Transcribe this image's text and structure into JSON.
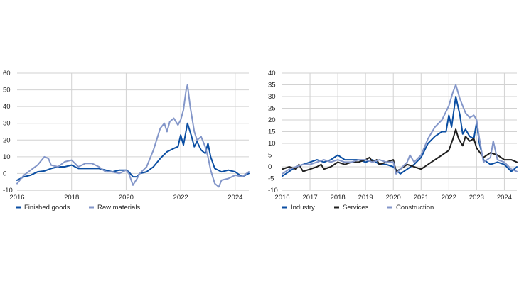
{
  "colors": {
    "dark_blue": "#0b4ea2",
    "black": "#1f1f1f",
    "light_blue": "#8396c9"
  },
  "chart_data": [
    {
      "type": "line",
      "title": "",
      "xlabel": "",
      "ylabel": "",
      "xlim": [
        2016.0,
        2024.5
      ],
      "ylim": [
        -10,
        60
      ],
      "yticks": [
        -10,
        0,
        10,
        20,
        30,
        40,
        50,
        60
      ],
      "xticks": [
        2016,
        2018,
        2020,
        2022,
        2024
      ],
      "grid": true,
      "legend_position": "bottom-left",
      "series": [
        {
          "name": "Finished goods",
          "color": "#0b4ea2",
          "width": 2,
          "points": [
            [
              2016.0,
              -4
            ],
            [
              2016.25,
              -2
            ],
            [
              2016.5,
              -1
            ],
            [
              2016.75,
              1
            ],
            [
              2017.0,
              1.5
            ],
            [
              2017.25,
              3
            ],
            [
              2017.5,
              4
            ],
            [
              2017.75,
              4
            ],
            [
              2018.0,
              5
            ],
            [
              2018.25,
              3
            ],
            [
              2018.5,
              3
            ],
            [
              2018.75,
              3
            ],
            [
              2019.0,
              3
            ],
            [
              2019.25,
              2
            ],
            [
              2019.5,
              1
            ],
            [
              2019.75,
              2
            ],
            [
              2020.0,
              2
            ],
            [
              2020.1,
              1
            ],
            [
              2020.25,
              -2
            ],
            [
              2020.4,
              -2
            ],
            [
              2020.5,
              0
            ],
            [
              2020.75,
              1
            ],
            [
              2021.0,
              4
            ],
            [
              2021.25,
              9
            ],
            [
              2021.5,
              13
            ],
            [
              2021.75,
              15
            ],
            [
              2021.9,
              16
            ],
            [
              2022.0,
              23
            ],
            [
              2022.1,
              17
            ],
            [
              2022.25,
              30
            ],
            [
              2022.4,
              22
            ],
            [
              2022.5,
              16
            ],
            [
              2022.6,
              19
            ],
            [
              2022.75,
              14
            ],
            [
              2022.9,
              12
            ],
            [
              2023.0,
              18
            ],
            [
              2023.1,
              10
            ],
            [
              2023.25,
              3
            ],
            [
              2023.5,
              1
            ],
            [
              2023.75,
              2
            ],
            [
              2024.0,
              1
            ],
            [
              2024.25,
              -2
            ],
            [
              2024.5,
              0
            ]
          ]
        },
        {
          "name": "Raw materials",
          "color": "#8396c9",
          "width": 2,
          "points": [
            [
              2016.0,
              -6
            ],
            [
              2016.25,
              -1
            ],
            [
              2016.5,
              2
            ],
            [
              2016.75,
              5
            ],
            [
              2017.0,
              10
            ],
            [
              2017.15,
              9
            ],
            [
              2017.25,
              5
            ],
            [
              2017.5,
              4
            ],
            [
              2017.75,
              7
            ],
            [
              2018.0,
              8
            ],
            [
              2018.25,
              4
            ],
            [
              2018.5,
              6
            ],
            [
              2018.75,
              6
            ],
            [
              2019.0,
              4
            ],
            [
              2019.25,
              1
            ],
            [
              2019.5,
              1
            ],
            [
              2019.75,
              0
            ],
            [
              2020.0,
              2
            ],
            [
              2020.1,
              0
            ],
            [
              2020.25,
              -7
            ],
            [
              2020.4,
              -3
            ],
            [
              2020.5,
              0
            ],
            [
              2020.75,
              4
            ],
            [
              2021.0,
              14
            ],
            [
              2021.25,
              27
            ],
            [
              2021.4,
              30
            ],
            [
              2021.5,
              25
            ],
            [
              2021.6,
              31
            ],
            [
              2021.75,
              33
            ],
            [
              2021.9,
              29
            ],
            [
              2022.0,
              32
            ],
            [
              2022.1,
              38
            ],
            [
              2022.2,
              50
            ],
            [
              2022.25,
              53
            ],
            [
              2022.35,
              40
            ],
            [
              2022.5,
              25
            ],
            [
              2022.6,
              20
            ],
            [
              2022.75,
              22
            ],
            [
              2022.9,
              16
            ],
            [
              2023.0,
              10
            ],
            [
              2023.1,
              2
            ],
            [
              2023.25,
              -6
            ],
            [
              2023.4,
              -8
            ],
            [
              2023.5,
              -4
            ],
            [
              2023.75,
              -3
            ],
            [
              2024.0,
              -1
            ],
            [
              2024.25,
              -2
            ],
            [
              2024.5,
              1
            ]
          ]
        }
      ]
    },
    {
      "type": "line",
      "title": "",
      "xlabel": "",
      "ylabel": "",
      "xlim": [
        2016.0,
        2024.45
      ],
      "ylim": [
        -10,
        40
      ],
      "yticks": [
        -10,
        -5,
        0,
        5,
        10,
        15,
        20,
        25,
        30,
        35,
        40
      ],
      "xticks": [
        2016,
        2017,
        2018,
        2019,
        2020,
        2021,
        2022,
        2023,
        2024
      ],
      "grid": true,
      "legend_position": "bottom-left",
      "series": [
        {
          "name": "Industry",
          "color": "#0b4ea2",
          "width": 2,
          "points": [
            [
              2016.0,
              -4
            ],
            [
              2016.25,
              -2
            ],
            [
              2016.5,
              0
            ],
            [
              2016.75,
              1
            ],
            [
              2017.0,
              2
            ],
            [
              2017.25,
              3
            ],
            [
              2017.5,
              2
            ],
            [
              2017.75,
              3
            ],
            [
              2018.0,
              5
            ],
            [
              2018.25,
              3
            ],
            [
              2018.5,
              3
            ],
            [
              2018.75,
              3
            ],
            [
              2019.0,
              2
            ],
            [
              2019.25,
              3
            ],
            [
              2019.5,
              1
            ],
            [
              2019.75,
              1
            ],
            [
              2020.0,
              0
            ],
            [
              2020.25,
              -3
            ],
            [
              2020.5,
              -1
            ],
            [
              2020.75,
              1
            ],
            [
              2021.0,
              4
            ],
            [
              2021.25,
              10
            ],
            [
              2021.5,
              13
            ],
            [
              2021.75,
              15
            ],
            [
              2021.9,
              15
            ],
            [
              2022.0,
              22
            ],
            [
              2022.1,
              17
            ],
            [
              2022.25,
              30
            ],
            [
              2022.4,
              22
            ],
            [
              2022.5,
              14
            ],
            [
              2022.6,
              16
            ],
            [
              2022.75,
              13
            ],
            [
              2022.9,
              12
            ],
            [
              2023.0,
              19
            ],
            [
              2023.1,
              10
            ],
            [
              2023.25,
              3
            ],
            [
              2023.5,
              1
            ],
            [
              2023.75,
              2
            ],
            [
              2024.0,
              1
            ],
            [
              2024.25,
              -2
            ],
            [
              2024.45,
              0
            ]
          ]
        },
        {
          "name": "Services",
          "color": "#1f1f1f",
          "width": 2,
          "points": [
            [
              2016.0,
              -1
            ],
            [
              2016.25,
              0
            ],
            [
              2016.5,
              -1
            ],
            [
              2016.6,
              1
            ],
            [
              2016.75,
              -2
            ],
            [
              2017.0,
              -1
            ],
            [
              2017.25,
              0
            ],
            [
              2017.4,
              1
            ],
            [
              2017.5,
              -1
            ],
            [
              2017.75,
              0
            ],
            [
              2018.0,
              2
            ],
            [
              2018.25,
              1
            ],
            [
              2018.5,
              2
            ],
            [
              2018.75,
              2
            ],
            [
              2019.0,
              3
            ],
            [
              2019.15,
              4
            ],
            [
              2019.25,
              2
            ],
            [
              2019.4,
              3
            ],
            [
              2019.5,
              1
            ],
            [
              2019.75,
              2
            ],
            [
              2020.0,
              3
            ],
            [
              2020.1,
              -2
            ],
            [
              2020.25,
              -1
            ],
            [
              2020.5,
              1
            ],
            [
              2020.75,
              0
            ],
            [
              2021.0,
              -1
            ],
            [
              2021.25,
              1
            ],
            [
              2021.5,
              3
            ],
            [
              2021.75,
              5
            ],
            [
              2022.0,
              7
            ],
            [
              2022.15,
              12
            ],
            [
              2022.25,
              16
            ],
            [
              2022.35,
              12
            ],
            [
              2022.5,
              9
            ],
            [
              2022.6,
              13
            ],
            [
              2022.75,
              11
            ],
            [
              2022.9,
              12
            ],
            [
              2023.0,
              8
            ],
            [
              2023.25,
              4
            ],
            [
              2023.5,
              6
            ],
            [
              2023.75,
              5
            ],
            [
              2024.0,
              3
            ],
            [
              2024.25,
              3
            ],
            [
              2024.45,
              2
            ]
          ]
        },
        {
          "name": "Construction",
          "color": "#8396c9",
          "width": 2,
          "points": [
            [
              2016.0,
              -3
            ],
            [
              2016.25,
              -1
            ],
            [
              2016.5,
              0
            ],
            [
              2016.75,
              1
            ],
            [
              2017.0,
              1
            ],
            [
              2017.25,
              2
            ],
            [
              2017.5,
              3
            ],
            [
              2017.75,
              2
            ],
            [
              2018.0,
              3
            ],
            [
              2018.25,
              2
            ],
            [
              2018.5,
              2
            ],
            [
              2018.75,
              3
            ],
            [
              2019.0,
              3
            ],
            [
              2019.25,
              2
            ],
            [
              2019.5,
              3
            ],
            [
              2019.75,
              2
            ],
            [
              2020.0,
              2
            ],
            [
              2020.1,
              -3
            ],
            [
              2020.25,
              -1
            ],
            [
              2020.5,
              2
            ],
            [
              2020.6,
              5
            ],
            [
              2020.75,
              2
            ],
            [
              2021.0,
              5
            ],
            [
              2021.25,
              12
            ],
            [
              2021.5,
              17
            ],
            [
              2021.75,
              20
            ],
            [
              2022.0,
              26
            ],
            [
              2022.15,
              32
            ],
            [
              2022.25,
              35
            ],
            [
              2022.4,
              29
            ],
            [
              2022.5,
              26
            ],
            [
              2022.6,
              23
            ],
            [
              2022.75,
              21
            ],
            [
              2022.9,
              22
            ],
            [
              2023.0,
              20
            ],
            [
              2023.1,
              12
            ],
            [
              2023.25,
              2
            ],
            [
              2023.5,
              4
            ],
            [
              2023.6,
              11
            ],
            [
              2023.75,
              3
            ],
            [
              2024.0,
              2
            ],
            [
              2024.25,
              -1
            ],
            [
              2024.45,
              -2
            ]
          ]
        }
      ]
    }
  ]
}
